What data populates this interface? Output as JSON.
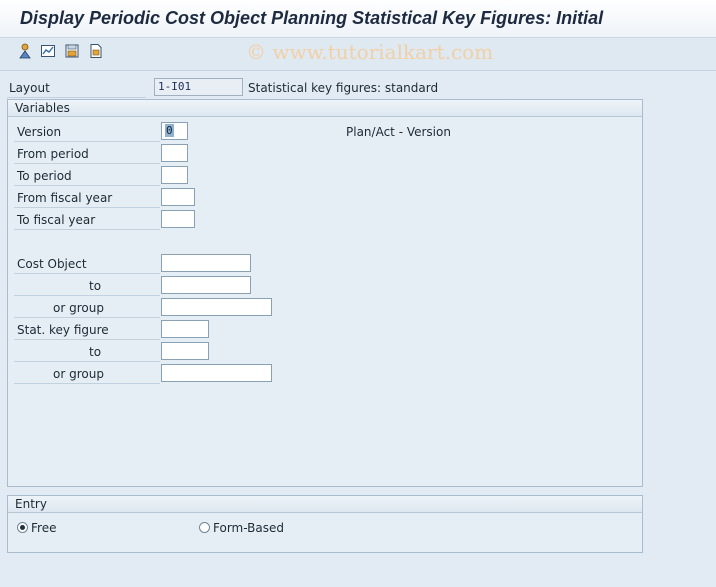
{
  "window": {
    "title": "Display Periodic Cost Object Planning Statistical Key Figures: Initial",
    "watermark": "© www.tutorialkart.com"
  },
  "toolbar": {
    "icons": [
      "execute-icon",
      "get-variant-icon",
      "save-variant-icon",
      "variant-list-icon"
    ]
  },
  "layout": {
    "label": "Layout",
    "value": "1-I01",
    "description": "Statistical key figures: standard"
  },
  "variables": {
    "title": "Variables",
    "version_label": "Version",
    "version_value": "0",
    "version_description": "Plan/Act - Version",
    "from_period_label": "From period",
    "to_period_label": "To period",
    "from_fiscal_year_label": "From fiscal year",
    "to_fiscal_year_label": "To fiscal year",
    "cost_object_label": "Cost Object",
    "cost_object_to_label": "to",
    "cost_object_group_label": "or group",
    "stat_key_figure_label": "Stat. key figure",
    "stat_key_figure_to_label": "to",
    "stat_key_figure_group_label": "or group"
  },
  "entry": {
    "title": "Entry",
    "free_label": "Free",
    "form_based_label": "Form-Based",
    "selected": "free"
  }
}
